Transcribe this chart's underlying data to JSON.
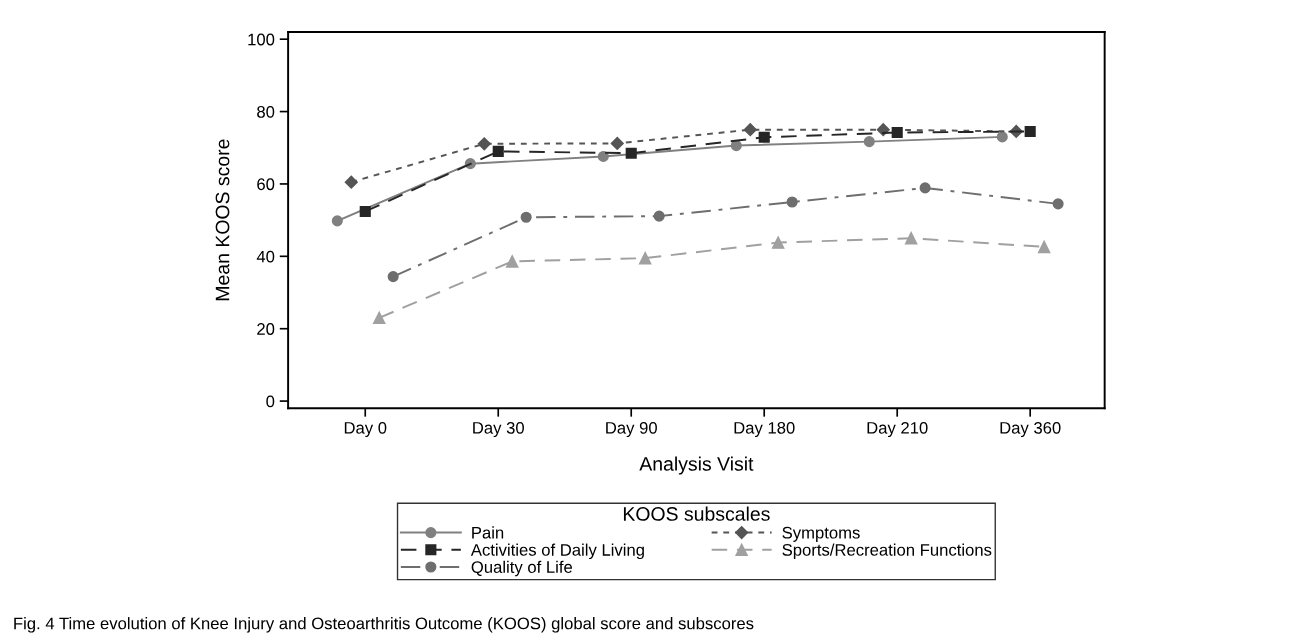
{
  "chart_data": {
    "type": "line",
    "xlabel": "Analysis Visit",
    "ylabel": "Mean KOOS score",
    "legend_title": "KOOS subscales",
    "categories": [
      "Day 0",
      "Day 30",
      "Day 90",
      "Day 180",
      "Day 210",
      "Day 360"
    ],
    "series": [
      {
        "name": "Pain",
        "color": "#808080",
        "marker": "circle",
        "line_style": "solid",
        "values": [
          49.8,
          65.6,
          67.6,
          70.6,
          71.7,
          73.0
        ]
      },
      {
        "name": "Symptoms",
        "color": "#555555",
        "marker": "diamond",
        "line_style": "dotted",
        "values": [
          60.5,
          71.1,
          71.2,
          75.0,
          75.0,
          74.5
        ]
      },
      {
        "name": "Activities of Daily Living",
        "color": "#262626",
        "marker": "square",
        "line_style": "dashed",
        "values": [
          52.4,
          69.0,
          68.5,
          72.9,
          74.2,
          74.5
        ]
      },
      {
        "name": "Sports/Recreation Functions",
        "color": "#a0a0a0",
        "marker": "triangle",
        "line_style": "dashed",
        "values": [
          23.0,
          38.6,
          39.5,
          43.8,
          45.0,
          42.6
        ]
      },
      {
        "name": "Quality of Life",
        "color": "#6e6e6e",
        "marker": "circle",
        "line_style": "dashdot",
        "values": [
          34.4,
          50.8,
          51.1,
          55.0,
          58.9,
          54.5
        ]
      }
    ],
    "ylim": [
      -2,
      102
    ],
    "yticks": [
      0,
      20,
      40,
      60,
      80,
      100
    ],
    "grid": false,
    "legend": "bottom",
    "annotations": [
      "Fig. 4 Time evolution of Knee Injury and Osteoarthritis Outcome (KOOS) global score and subscores"
    ]
  }
}
